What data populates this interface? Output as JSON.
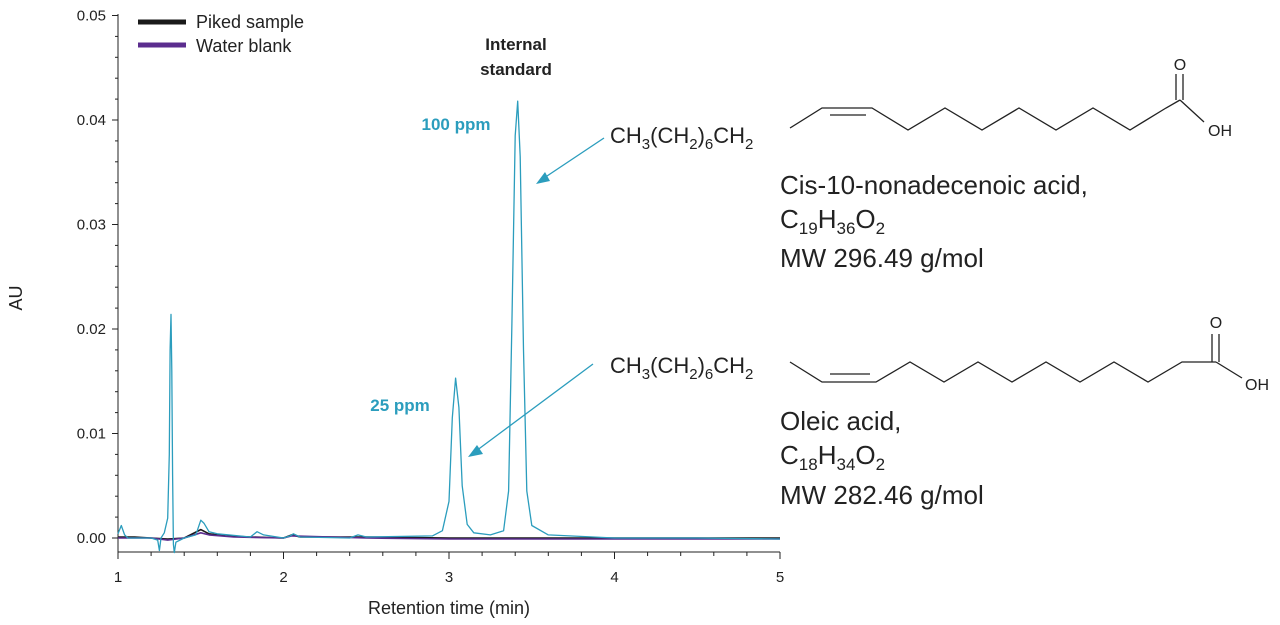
{
  "chart_data": {
    "type": "line",
    "title": "",
    "xlabel": "Retention time (min)",
    "ylabel": "AU",
    "xlim": [
      1,
      5
    ],
    "ylim": [
      -0.0015,
      0.05
    ],
    "x_ticks": [
      "1",
      "2",
      "3",
      "4",
      "5"
    ],
    "y_ticks": [
      "0.00",
      "0.01",
      "0.02",
      "0.03",
      "0.04",
      "0.05"
    ],
    "grid": false,
    "legend_position": "top-left",
    "series": [
      {
        "name": "Piked sample",
        "color": "#1a1a1a",
        "points": [
          [
            1.0,
            0.0001
          ],
          [
            1.1,
            0.0001
          ],
          [
            1.2,
            0.0
          ],
          [
            1.3,
            -0.0001
          ],
          [
            1.4,
            0.0
          ],
          [
            1.5,
            0.0008
          ],
          [
            1.55,
            0.0004
          ],
          [
            1.65,
            0.0002
          ],
          [
            1.8,
            0.0001
          ],
          [
            2.0,
            0.0
          ],
          [
            2.05,
            0.0003
          ],
          [
            2.1,
            0.0001
          ],
          [
            2.5,
            0.0001
          ],
          [
            3.0,
            0.0
          ],
          [
            3.5,
            0.0
          ],
          [
            4.0,
            0.0
          ],
          [
            4.5,
            0.0
          ],
          [
            5.0,
            0.0
          ]
        ]
      },
      {
        "name": "Water blank",
        "color": "#5b2d8e",
        "points": [
          [
            1.0,
            0.0
          ],
          [
            1.2,
            0.0
          ],
          [
            1.3,
            -0.0002
          ],
          [
            1.4,
            0.0
          ],
          [
            1.5,
            0.0005
          ],
          [
            1.55,
            0.0003
          ],
          [
            1.7,
            0.0001
          ],
          [
            2.0,
            0.0
          ],
          [
            2.05,
            0.0002
          ],
          [
            2.5,
            0.0
          ],
          [
            3.0,
            -0.0001
          ],
          [
            3.5,
            -0.0001
          ],
          [
            4.0,
            -0.0001
          ],
          [
            4.5,
            -0.0001
          ],
          [
            5.0,
            -0.0001
          ]
        ]
      },
      {
        "name": "",
        "color": "#2b9dbd",
        "points": [
          [
            1.0,
            0.0004
          ],
          [
            1.02,
            0.0012
          ],
          [
            1.04,
            0.0003
          ],
          [
            1.06,
            0.0
          ],
          [
            1.2,
            0.0
          ],
          [
            1.24,
            -0.0002
          ],
          [
            1.25,
            -0.0012
          ],
          [
            1.26,
            0.0
          ],
          [
            1.28,
            0.0005
          ],
          [
            1.3,
            0.0019
          ],
          [
            1.31,
            0.008
          ],
          [
            1.315,
            0.018
          ],
          [
            1.32,
            0.0214
          ],
          [
            1.325,
            0.016
          ],
          [
            1.33,
            0.006
          ],
          [
            1.335,
            -0.0006
          ],
          [
            1.34,
            -0.0014
          ],
          [
            1.35,
            -0.0004
          ],
          [
            1.4,
            0.0
          ],
          [
            1.47,
            0.0003
          ],
          [
            1.5,
            0.0017
          ],
          [
            1.52,
            0.0014
          ],
          [
            1.55,
            0.0006
          ],
          [
            1.6,
            0.0004
          ],
          [
            1.8,
            0.0001
          ],
          [
            1.84,
            0.0006
          ],
          [
            1.88,
            0.0003
          ],
          [
            2.0,
            0.0
          ],
          [
            2.04,
            0.0002
          ],
          [
            2.06,
            0.0004
          ],
          [
            2.1,
            0.0001
          ],
          [
            2.4,
            0.0
          ],
          [
            2.45,
            0.0003
          ],
          [
            2.5,
            0.0001
          ],
          [
            2.9,
            0.0002
          ],
          [
            2.96,
            0.0007
          ],
          [
            3.0,
            0.0035
          ],
          [
            3.02,
            0.0115
          ],
          [
            3.04,
            0.0153
          ],
          [
            3.06,
            0.0125
          ],
          [
            3.08,
            0.005
          ],
          [
            3.11,
            0.0013
          ],
          [
            3.15,
            0.0005
          ],
          [
            3.25,
            0.0003
          ],
          [
            3.33,
            0.0007
          ],
          [
            3.36,
            0.0045
          ],
          [
            3.38,
            0.0205
          ],
          [
            3.4,
            0.0385
          ],
          [
            3.415,
            0.0418
          ],
          [
            3.43,
            0.0365
          ],
          [
            3.45,
            0.018
          ],
          [
            3.47,
            0.0045
          ],
          [
            3.5,
            0.0012
          ],
          [
            3.6,
            0.0003
          ],
          [
            4.0,
            0.0
          ],
          [
            4.5,
            0.0
          ],
          [
            5.0,
            -0.0001
          ]
        ]
      }
    ],
    "annotations": {
      "internal_standard_line1": "Internal",
      "internal_standard_line2": "standard",
      "peak_100": "100 ppm",
      "peak_25": "25 ppm",
      "annotation_color": "#2b9dbd"
    }
  },
  "compounds": [
    {
      "chain_main": "CH",
      "chain_sub1": "3",
      "chain_mid": "(CH",
      "chain_sub2": "2",
      "chain_close": ")",
      "chain_sub3": "6",
      "chain_end": "CH",
      "chain_sub4": "2",
      "oxygen": "O",
      "hydroxyl": "OH",
      "name": "Cis-10-nonadecenoic acid,",
      "formula_c": "C",
      "formula_c_n": "19",
      "formula_h": "H",
      "formula_h_n": "36",
      "formula_o": "O",
      "formula_o_n": "2",
      "mw": "MW 296.49 g/mol"
    },
    {
      "chain_main": "CH",
      "chain_sub1": "3",
      "chain_mid": "(CH",
      "chain_sub2": "2",
      "chain_close": ")",
      "chain_sub3": "6",
      "chain_end": "CH",
      "chain_sub4": "2",
      "oxygen": "O",
      "hydroxyl": "OH",
      "name": "Oleic acid,",
      "formula_c": "C",
      "formula_c_n": "18",
      "formula_h": "H",
      "formula_h_n": "34",
      "formula_o": "O",
      "formula_o_n": "2",
      "mw": "MW 282.46 g/mol"
    }
  ]
}
